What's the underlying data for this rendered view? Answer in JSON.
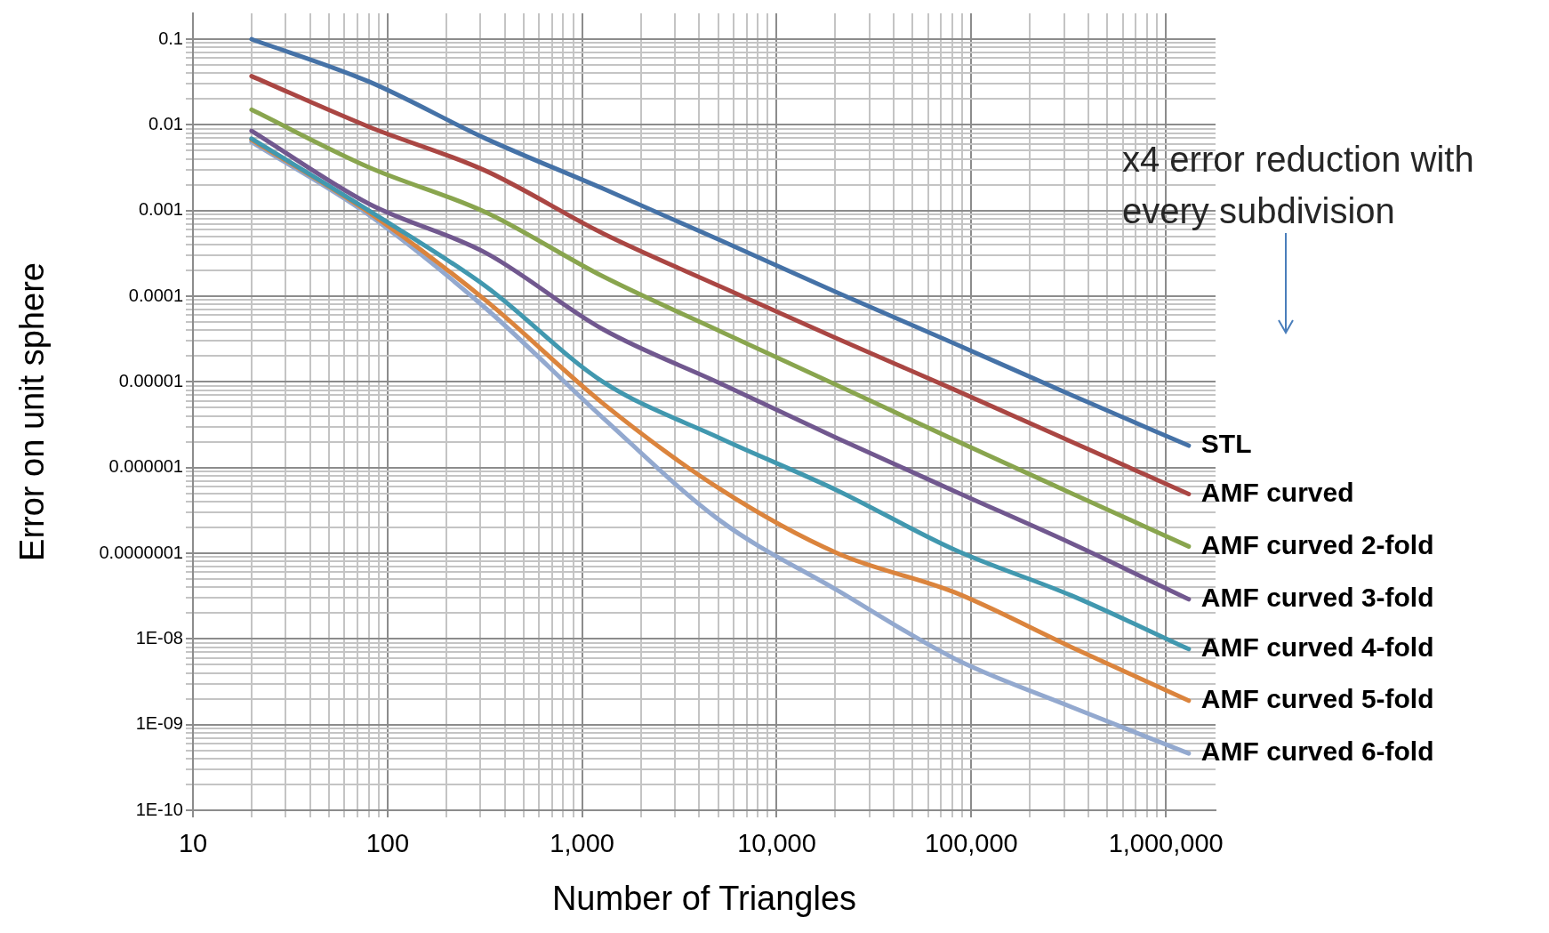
{
  "chart_data": {
    "type": "line",
    "xlabel": "Number of Triangles",
    "ylabel": "Error on unit sphere",
    "annotations": [
      "x4 error reduction with every subdivision"
    ],
    "log": "xy",
    "grid": true,
    "legend": false,
    "marker": "none",
    "line_style": "solid",
    "xlim": [
      10,
      1800000
    ],
    "ylim": [
      1e-10,
      0.2
    ],
    "xticks": [
      {
        "value": 10,
        "label": "10"
      },
      {
        "value": 20,
        "label": null
      },
      {
        "value": 30,
        "label": null
      },
      {
        "value": 40,
        "label": null
      },
      {
        "value": 50,
        "label": null
      },
      {
        "value": 60,
        "label": null
      },
      {
        "value": 70,
        "label": null
      },
      {
        "value": 80,
        "label": null
      },
      {
        "value": 90,
        "label": null
      },
      {
        "value": 100,
        "label": "100"
      },
      {
        "value": 200,
        "label": null
      },
      {
        "value": 300,
        "label": null
      },
      {
        "value": 400,
        "label": null
      },
      {
        "value": 500,
        "label": null
      },
      {
        "value": 600,
        "label": null
      },
      {
        "value": 700,
        "label": null
      },
      {
        "value": 800,
        "label": null
      },
      {
        "value": 900,
        "label": null
      },
      {
        "value": 1000,
        "label": "1,000"
      },
      {
        "value": 2000,
        "label": null
      },
      {
        "value": 3000,
        "label": null
      },
      {
        "value": 4000,
        "label": null
      },
      {
        "value": 5000,
        "label": null
      },
      {
        "value": 6000,
        "label": null
      },
      {
        "value": 7000,
        "label": null
      },
      {
        "value": 8000,
        "label": null
      },
      {
        "value": 9000,
        "label": null
      },
      {
        "value": 10000,
        "label": "10,000"
      },
      {
        "value": 20000,
        "label": null
      },
      {
        "value": 30000,
        "label": null
      },
      {
        "value": 40000,
        "label": null
      },
      {
        "value": 50000,
        "label": null
      },
      {
        "value": 60000,
        "label": null
      },
      {
        "value": 70000,
        "label": null
      },
      {
        "value": 80000,
        "label": null
      },
      {
        "value": 90000,
        "label": null
      },
      {
        "value": 100000,
        "label": "100,000"
      },
      {
        "value": 200000,
        "label": null
      },
      {
        "value": 300000,
        "label": null
      },
      {
        "value": 400000,
        "label": null
      },
      {
        "value": 500000,
        "label": null
      },
      {
        "value": 600000,
        "label": null
      },
      {
        "value": 700000,
        "label": null
      },
      {
        "value": 800000,
        "label": null
      },
      {
        "value": 900000,
        "label": null
      },
      {
        "value": 1000000,
        "label": "1,000,000"
      }
    ],
    "yticks": [
      {
        "value": 1e-10,
        "label": "1E-10"
      },
      {
        "value": 2e-10,
        "label": null
      },
      {
        "value": 3e-10,
        "label": null
      },
      {
        "value": 4e-10,
        "label": null
      },
      {
        "value": 5e-10,
        "label": null
      },
      {
        "value": 6e-10,
        "label": null
      },
      {
        "value": 7e-10,
        "label": null
      },
      {
        "value": 8e-10,
        "label": null
      },
      {
        "value": 9e-10,
        "label": null
      },
      {
        "value": 1e-09,
        "label": "1E-09"
      },
      {
        "value": 2e-09,
        "label": null
      },
      {
        "value": 3e-09,
        "label": null
      },
      {
        "value": 4e-09,
        "label": null
      },
      {
        "value": 5e-09,
        "label": null
      },
      {
        "value": 6e-09,
        "label": null
      },
      {
        "value": 7e-09,
        "label": null
      },
      {
        "value": 8e-09,
        "label": null
      },
      {
        "value": 9e-09,
        "label": null
      },
      {
        "value": 1e-08,
        "label": "1E-08"
      },
      {
        "value": 2e-08,
        "label": null
      },
      {
        "value": 3e-08,
        "label": null
      },
      {
        "value": 4e-08,
        "label": null
      },
      {
        "value": 5e-08,
        "label": null
      },
      {
        "value": 6e-08,
        "label": null
      },
      {
        "value": 7e-08,
        "label": null
      },
      {
        "value": 8e-08,
        "label": null
      },
      {
        "value": 9e-08,
        "label": null
      },
      {
        "value": 1e-07,
        "label": "0.0000001"
      },
      {
        "value": 2e-07,
        "label": null
      },
      {
        "value": 3e-07,
        "label": null
      },
      {
        "value": 4e-07,
        "label": null
      },
      {
        "value": 5e-07,
        "label": null
      },
      {
        "value": 6e-07,
        "label": null
      },
      {
        "value": 7e-07,
        "label": null
      },
      {
        "value": 8e-07,
        "label": null
      },
      {
        "value": 9e-07,
        "label": null
      },
      {
        "value": 1e-06,
        "label": "0.000001"
      },
      {
        "value": 2e-06,
        "label": null
      },
      {
        "value": 3e-06,
        "label": null
      },
      {
        "value": 4e-06,
        "label": null
      },
      {
        "value": 5e-06,
        "label": null
      },
      {
        "value": 6e-06,
        "label": null
      },
      {
        "value": 7e-06,
        "label": null
      },
      {
        "value": 8e-06,
        "label": null
      },
      {
        "value": 9e-06,
        "label": null
      },
      {
        "value": 1e-05,
        "label": "0.00001"
      },
      {
        "value": 2e-05,
        "label": null
      },
      {
        "value": 3e-05,
        "label": null
      },
      {
        "value": 4e-05,
        "label": null
      },
      {
        "value": 5e-05,
        "label": null
      },
      {
        "value": 6e-05,
        "label": null
      },
      {
        "value": 7e-05,
        "label": null
      },
      {
        "value": 8e-05,
        "label": null
      },
      {
        "value": 9e-05,
        "label": null
      },
      {
        "value": 0.0001,
        "label": "0.0001"
      },
      {
        "value": 0.0002,
        "label": null
      },
      {
        "value": 0.0003,
        "label": null
      },
      {
        "value": 0.0004,
        "label": null
      },
      {
        "value": 0.0005,
        "label": null
      },
      {
        "value": 0.0006,
        "label": null
      },
      {
        "value": 0.0007,
        "label": null
      },
      {
        "value": 0.0008,
        "label": null
      },
      {
        "value": 0.0009,
        "label": null
      },
      {
        "value": 0.001,
        "label": "0.001"
      },
      {
        "value": 0.002,
        "label": null
      },
      {
        "value": 0.003,
        "label": null
      },
      {
        "value": 0.004,
        "label": null
      },
      {
        "value": 0.005,
        "label": null
      },
      {
        "value": 0.006,
        "label": null
      },
      {
        "value": 0.007,
        "label": null
      },
      {
        "value": 0.008,
        "label": null
      },
      {
        "value": 0.009,
        "label": null
      },
      {
        "value": 0.01,
        "label": "0.01"
      },
      {
        "value": 0.02,
        "label": null
      },
      {
        "value": 0.03,
        "label": null
      },
      {
        "value": 0.04,
        "label": null
      },
      {
        "value": 0.05,
        "label": null
      },
      {
        "value": 0.06,
        "label": null
      },
      {
        "value": 0.07,
        "label": null
      },
      {
        "value": 0.08,
        "label": null
      },
      {
        "value": 0.09,
        "label": null
      },
      {
        "value": 0.1,
        "label": "0.1"
      }
    ],
    "x": [
      20,
      80,
      320,
      1280,
      5120,
      20480,
      81920,
      327680,
      1310720
    ],
    "series": [
      {
        "name": "STL",
        "color": "#4572a7",
        "values": [
          0.1,
          0.032,
          0.0069,
          0.0018,
          0.00045,
          0.00011,
          2.8e-05,
          7e-06,
          1.8e-06
        ]
      },
      {
        "name": "AMF curved",
        "color": "#aa4643",
        "values": [
          0.037,
          0.0095,
          0.0029,
          0.00054,
          0.00013,
          3.2e-05,
          8.1e-06,
          2e-06,
          4.9e-07
        ]
      },
      {
        "name": "AMF curved 2-fold",
        "color": "#89a54e",
        "values": [
          0.015,
          0.0032,
          0.00095,
          0.00017,
          3.9e-05,
          9.1e-06,
          2.1e-06,
          5e-07,
          1.2e-07
        ]
      },
      {
        "name": "AMF curved 3-fold",
        "color": "#71588f",
        "values": [
          0.0085,
          0.0012,
          0.00032,
          4.1e-05,
          9.6e-06,
          2.2e-06,
          5.3e-07,
          1.3e-07,
          2.9e-08
        ]
      },
      {
        "name": "AMF curved 4-fold",
        "color": "#4198af",
        "values": [
          0.0069,
          0.001,
          0.00013,
          1e-05,
          2.2e-06,
          5.4e-07,
          1.1e-07,
          3.2e-08,
          7.6e-09
        ]
      },
      {
        "name": "AMF curved 5-fold",
        "color": "#db843d",
        "values": [
          0.0067,
          0.00095,
          8.9e-05,
          5.6e-06,
          5.6e-07,
          1e-07,
          3.5e-08,
          8e-09,
          1.9e-09
        ]
      },
      {
        "name": "AMF curved 6-fold",
        "color": "#93a9cf",
        "values": [
          0.0063,
          0.00089,
          7.2e-05,
          3.8e-06,
          2.4e-07,
          3.7e-08,
          5.9e-09,
          1.6e-09,
          4.6e-10
        ]
      }
    ]
  }
}
